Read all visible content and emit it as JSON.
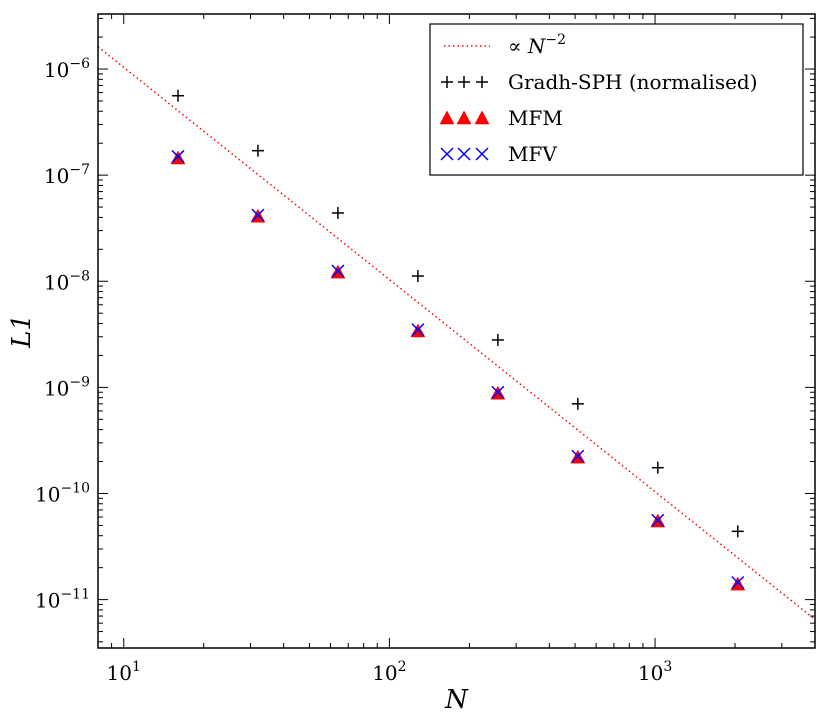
{
  "chart_data": {
    "type": "scatter",
    "xscale": "log",
    "yscale": "log",
    "xlabel": "N",
    "ylabel": "L1",
    "xlim": [
      8,
      4000
    ],
    "ylim": [
      3.5e-12,
      3.3e-06
    ],
    "x_ticks": [
      {
        "value": 10,
        "base": "10",
        "exp": "1"
      },
      {
        "value": 100,
        "base": "10",
        "exp": "2"
      },
      {
        "value": 1000,
        "base": "10",
        "exp": "3"
      }
    ],
    "y_ticks": [
      {
        "value": 1e-06,
        "base": "10",
        "exp": "−6"
      },
      {
        "value": 1e-07,
        "base": "10",
        "exp": "−7"
      },
      {
        "value": 1e-08,
        "base": "10",
        "exp": "−8"
      },
      {
        "value": 1e-09,
        "base": "10",
        "exp": "−9"
      },
      {
        "value": 1e-10,
        "base": "10",
        "exp": "−10"
      },
      {
        "value": 1e-11,
        "base": "10",
        "exp": "−11"
      }
    ],
    "reference_line": {
      "name": "∝ N−2",
      "legend_prefix": "∝ ",
      "legend_var": "N",
      "legend_exp": "−2",
      "style": "dotted",
      "color": "#ff0000",
      "x": [
        8,
        4000
      ],
      "y": [
        1.62e-06,
        6.5e-12
      ]
    },
    "series": [
      {
        "name": "Gradh-SPH (normalised)",
        "marker": "plus",
        "color": "#000000",
        "x": [
          16,
          32,
          64,
          128,
          256,
          512,
          1024,
          2048
        ],
        "y": [
          5.6e-07,
          1.7e-07,
          4.4e-08,
          1.12e-08,
          2.8e-09,
          7e-10,
          1.75e-10,
          4.4e-11
        ]
      },
      {
        "name": "MFM",
        "marker": "triangle",
        "color": "#ff0000",
        "x": [
          16,
          32,
          64,
          128,
          256,
          512,
          1024,
          2048
        ],
        "y": [
          1.45e-07,
          4.1e-08,
          1.22e-08,
          3.4e-09,
          8.8e-10,
          2.2e-10,
          5.5e-11,
          1.4e-11
        ]
      },
      {
        "name": "MFV",
        "marker": "x",
        "color": "#0000ff",
        "x": [
          16,
          32,
          64,
          128,
          256,
          512,
          1024,
          2048
        ],
        "y": [
          1.5e-07,
          4.2e-08,
          1.25e-08,
          3.5e-09,
          9e-10,
          2.25e-10,
          5.6e-11,
          1.45e-11
        ]
      }
    ]
  }
}
